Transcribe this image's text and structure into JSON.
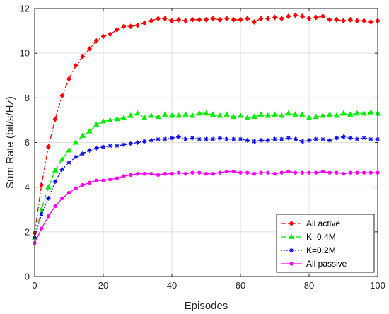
{
  "chart_data": {
    "type": "line",
    "xlabel": "Episodes",
    "ylabel": "Sum Rate (bit/s/Hz)",
    "xlim": [
      0,
      100
    ],
    "ylim": [
      0,
      12
    ],
    "x_ticks": [
      "0",
      "20",
      "40",
      "60",
      "80",
      "100"
    ],
    "y_ticks": [
      "0",
      "2",
      "4",
      "6",
      "8",
      "10",
      "12"
    ],
    "grid": true,
    "legend_position": "bottom-right",
    "x": [
      0,
      2,
      4,
      6,
      8,
      10,
      12,
      14,
      16,
      18,
      20,
      22,
      24,
      26,
      28,
      30,
      32,
      34,
      36,
      38,
      40,
      42,
      44,
      46,
      48,
      50,
      52,
      54,
      56,
      58,
      60,
      62,
      64,
      66,
      68,
      70,
      72,
      74,
      76,
      78,
      80,
      82,
      84,
      86,
      88,
      90,
      92,
      94,
      96,
      98,
      100
    ],
    "series": [
      {
        "name": "All active",
        "color": "#ff0000",
        "line_style": "dash-dot",
        "marker": "diamond",
        "values": [
          1.95,
          4.1,
          5.8,
          7.05,
          8.1,
          8.85,
          9.45,
          9.85,
          10.2,
          10.55,
          10.75,
          10.85,
          11.05,
          11.2,
          11.2,
          11.25,
          11.35,
          11.45,
          11.55,
          11.55,
          11.45,
          11.5,
          11.45,
          11.5,
          11.5,
          11.5,
          11.55,
          11.5,
          11.55,
          11.5,
          11.5,
          11.55,
          11.4,
          11.55,
          11.55,
          11.6,
          11.55,
          11.65,
          11.7,
          11.65,
          11.55,
          11.6,
          11.65,
          11.5,
          11.5,
          11.45,
          11.5,
          11.45,
          11.45,
          11.4,
          11.45
        ]
      },
      {
        "name": "K=0.4M",
        "color": "#00ee00",
        "line_style": "dashed",
        "marker": "triangle",
        "values": [
          1.75,
          3.0,
          4.0,
          4.75,
          5.25,
          5.65,
          6.0,
          6.3,
          6.5,
          6.8,
          6.95,
          7.0,
          7.05,
          7.1,
          7.2,
          7.3,
          7.1,
          7.2,
          7.15,
          7.25,
          7.2,
          7.2,
          7.25,
          7.2,
          7.3,
          7.3,
          7.25,
          7.2,
          7.25,
          7.15,
          7.2,
          7.1,
          7.15,
          7.25,
          7.2,
          7.25,
          7.2,
          7.3,
          7.25,
          7.25,
          7.1,
          7.15,
          7.2,
          7.25,
          7.2,
          7.3,
          7.25,
          7.3,
          7.3,
          7.35,
          7.3
        ]
      },
      {
        "name": "K=0.2M",
        "color": "#0000ee",
        "line_style": "dotted",
        "marker": "asterisk",
        "values": [
          1.75,
          2.8,
          3.5,
          4.25,
          4.8,
          5.1,
          5.35,
          5.5,
          5.65,
          5.75,
          5.8,
          5.85,
          5.85,
          5.9,
          5.95,
          6.0,
          6.05,
          6.1,
          6.15,
          6.15,
          6.2,
          6.25,
          6.15,
          6.2,
          6.15,
          6.15,
          6.15,
          6.2,
          6.15,
          6.15,
          6.15,
          6.1,
          6.05,
          6.1,
          6.1,
          6.15,
          6.15,
          6.2,
          6.15,
          6.05,
          6.1,
          6.15,
          6.15,
          6.1,
          6.2,
          6.25,
          6.2,
          6.15,
          6.2,
          6.15,
          6.15
        ]
      },
      {
        "name": "All passive",
        "color": "#ff00ff",
        "line_style": "solid",
        "marker": "dot",
        "values": [
          1.5,
          2.15,
          2.7,
          3.15,
          3.5,
          3.75,
          3.95,
          4.1,
          4.2,
          4.3,
          4.3,
          4.35,
          4.4,
          4.5,
          4.55,
          4.6,
          4.6,
          4.6,
          4.55,
          4.6,
          4.6,
          4.65,
          4.6,
          4.65,
          4.65,
          4.6,
          4.6,
          4.65,
          4.7,
          4.7,
          4.65,
          4.65,
          4.6,
          4.65,
          4.65,
          4.6,
          4.65,
          4.7,
          4.65,
          4.65,
          4.65,
          4.65,
          4.7,
          4.65,
          4.65,
          4.6,
          4.65,
          4.65,
          4.65,
          4.65,
          4.65
        ]
      }
    ]
  }
}
